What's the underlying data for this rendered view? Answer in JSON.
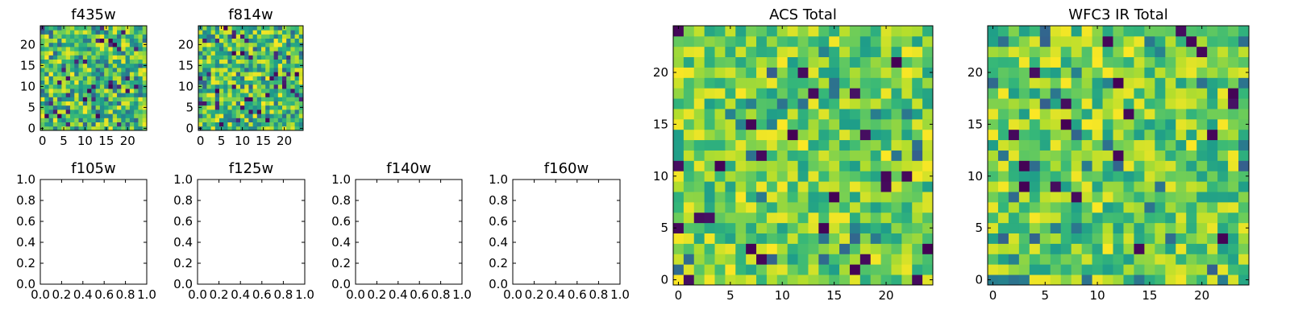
{
  "chart_data": [
    {
      "id": "f435w",
      "type": "heatmap",
      "title": "f435w",
      "grid": false,
      "shape": [
        25,
        25
      ],
      "xlim": [
        -0.5,
        24.5
      ],
      "ylim": [
        -0.5,
        24.5
      ],
      "xticks": [
        0,
        5,
        10,
        15,
        20
      ],
      "yticks": [
        0,
        5,
        10,
        15,
        20
      ],
      "colormap": "viridis",
      "value_range": [
        0,
        1
      ],
      "seed": 11,
      "dist": "noise"
    },
    {
      "id": "f814w",
      "type": "heatmap",
      "title": "f814w",
      "grid": false,
      "shape": [
        25,
        25
      ],
      "xlim": [
        -0.5,
        24.5
      ],
      "ylim": [
        -0.5,
        24.5
      ],
      "xticks": [
        0,
        5,
        10,
        15,
        20
      ],
      "yticks": [
        0,
        5,
        10,
        15,
        20
      ],
      "colormap": "viridis",
      "value_range": [
        0,
        1
      ],
      "seed": 23,
      "dist": "noise"
    },
    {
      "id": "f105w",
      "type": "empty",
      "title": "f105w",
      "xlim": [
        0,
        1
      ],
      "ylim": [
        0,
        1
      ],
      "xtick_labels": [
        "0.0",
        "0.2",
        "0.4",
        "0.6",
        "0.8",
        "1.0"
      ],
      "ytick_labels": [
        "0.0",
        "0.2",
        "0.4",
        "0.6",
        "0.8",
        "1.0"
      ]
    },
    {
      "id": "f125w",
      "type": "empty",
      "title": "f125w",
      "xlim": [
        0,
        1
      ],
      "ylim": [
        0,
        1
      ],
      "xtick_labels": [
        "0.0",
        "0.2",
        "0.4",
        "0.6",
        "0.8",
        "1.0"
      ],
      "ytick_labels": [
        "0.0",
        "0.2",
        "0.4",
        "0.6",
        "0.8",
        "1.0"
      ]
    },
    {
      "id": "f140w",
      "type": "empty",
      "title": "f140w",
      "xlim": [
        0,
        1
      ],
      "ylim": [
        0,
        1
      ],
      "xtick_labels": [
        "0.0",
        "0.2",
        "0.4",
        "0.6",
        "0.8",
        "1.0"
      ],
      "ytick_labels": [
        "0.0",
        "0.2",
        "0.4",
        "0.6",
        "0.8",
        "1.0"
      ]
    },
    {
      "id": "f160w",
      "type": "empty",
      "title": "f160w",
      "xlim": [
        0,
        1
      ],
      "ylim": [
        0,
        1
      ],
      "xtick_labels": [
        "0.0",
        "0.2",
        "0.4",
        "0.6",
        "0.8",
        "1.0"
      ],
      "ytick_labels": [
        "0.0",
        "0.2",
        "0.4",
        "0.6",
        "0.8",
        "1.0"
      ]
    },
    {
      "id": "acs_total",
      "type": "heatmap",
      "title": "ACS Total",
      "grid": false,
      "shape": [
        25,
        25
      ],
      "xlim": [
        -0.5,
        24.5
      ],
      "ylim": [
        -0.5,
        24.5
      ],
      "xticks": [
        0,
        5,
        10,
        15,
        20
      ],
      "yticks": [
        0,
        5,
        10,
        15,
        20
      ],
      "colormap": "viridis",
      "value_range": [
        0,
        1
      ],
      "seed": 37,
      "dist": "bright"
    },
    {
      "id": "wfc3_ir_total",
      "type": "heatmap",
      "title": "WFC3 IR Total",
      "grid": false,
      "shape": [
        25,
        25
      ],
      "xlim": [
        -0.5,
        24.5
      ],
      "ylim": [
        -0.5,
        24.5
      ],
      "xticks": [
        0,
        5,
        10,
        15,
        20
      ],
      "yticks": [
        0,
        5,
        10,
        15,
        20
      ],
      "colormap": "viridis",
      "value_range": [
        0,
        1
      ],
      "seed": 53,
      "dist": "bright"
    }
  ]
}
